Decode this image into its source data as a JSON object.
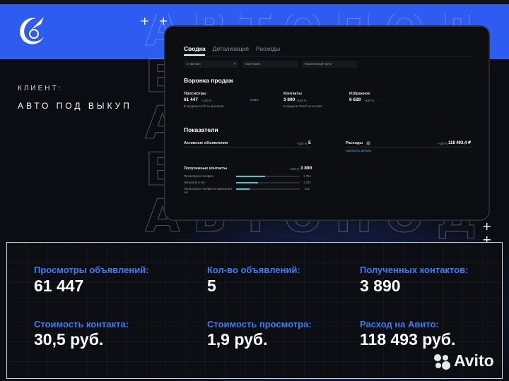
{
  "header": {
    "client_label": "КЛИЕНТ:",
    "client_name": "АВТО ПОД ВЫКУП",
    "plus_top": "+ +",
    "plus_bottom": "+ +",
    "logo_icon": "comet-logo-icon",
    "brand_color": "#2e5bf0"
  },
  "app": {
    "tabs": [
      {
        "label": "Сводка",
        "active": true
      },
      {
        "label": "Детализация",
        "active": false
      },
      {
        "label": "Расходы",
        "active": false
      }
    ],
    "filters": {
      "period": "1–30 июн",
      "category_placeholder": "Категория",
      "city_placeholder": "Населённый пункт"
    },
    "funnel": {
      "title": "Воронка продаж",
      "views": {
        "label": "Просмотры",
        "value": "61 447",
        "badge": "+100 %",
        "sub": "В среднем 1,9 ₽ за просмотр",
        "conversion": "6,33% "
      },
      "contacts": {
        "label": "Контакты",
        "value": "3 890",
        "badge": "+100 %",
        "sub": "В среднем 30,5 ₽ за контакт"
      },
      "favorites": {
        "label": "Избранное",
        "value": "6 628",
        "badge": "+100 %"
      }
    },
    "indicators": {
      "title": "Показатели",
      "active_ads": {
        "label": "Активные объявления",
        "badge": "+100 %",
        "value": "5"
      },
      "expenses": {
        "label": "Расходы",
        "badge": "+100 %",
        "value": "118 493,4 ₽",
        "link": "Смотреть детали"
      },
      "contacts": {
        "label": "Полученные контакты",
        "badge": "+100 %",
        "value": "3 890"
      },
      "breakdown": [
        {
          "label": "Посмотрели телефон",
          "value": "1 754",
          "share": 0.45
        },
        {
          "label": "Написали в чат",
          "value": "1 323",
          "share": 0.34
        },
        {
          "label": "Посмотрели телефон и написали в чат",
          "value": "813",
          "share": 0.21
        }
      ]
    }
  },
  "stats": [
    {
      "label": "Просмотры объявлений:",
      "value": "61 447"
    },
    {
      "label": "Кол-во объявлений:",
      "value": "5"
    },
    {
      "label": "Полученных контактов:",
      "value": "3 890"
    },
    {
      "label": "Стоимость контакта:",
      "value": "30,5 руб."
    },
    {
      "label": "Стоимость просмотра:",
      "value": "1,9 руб."
    },
    {
      "label": "Расход на Авито:",
      "value": "118 493 руб."
    }
  ],
  "footer": {
    "brand": "Avito",
    "brand_icon": "avito-dots-icon"
  }
}
